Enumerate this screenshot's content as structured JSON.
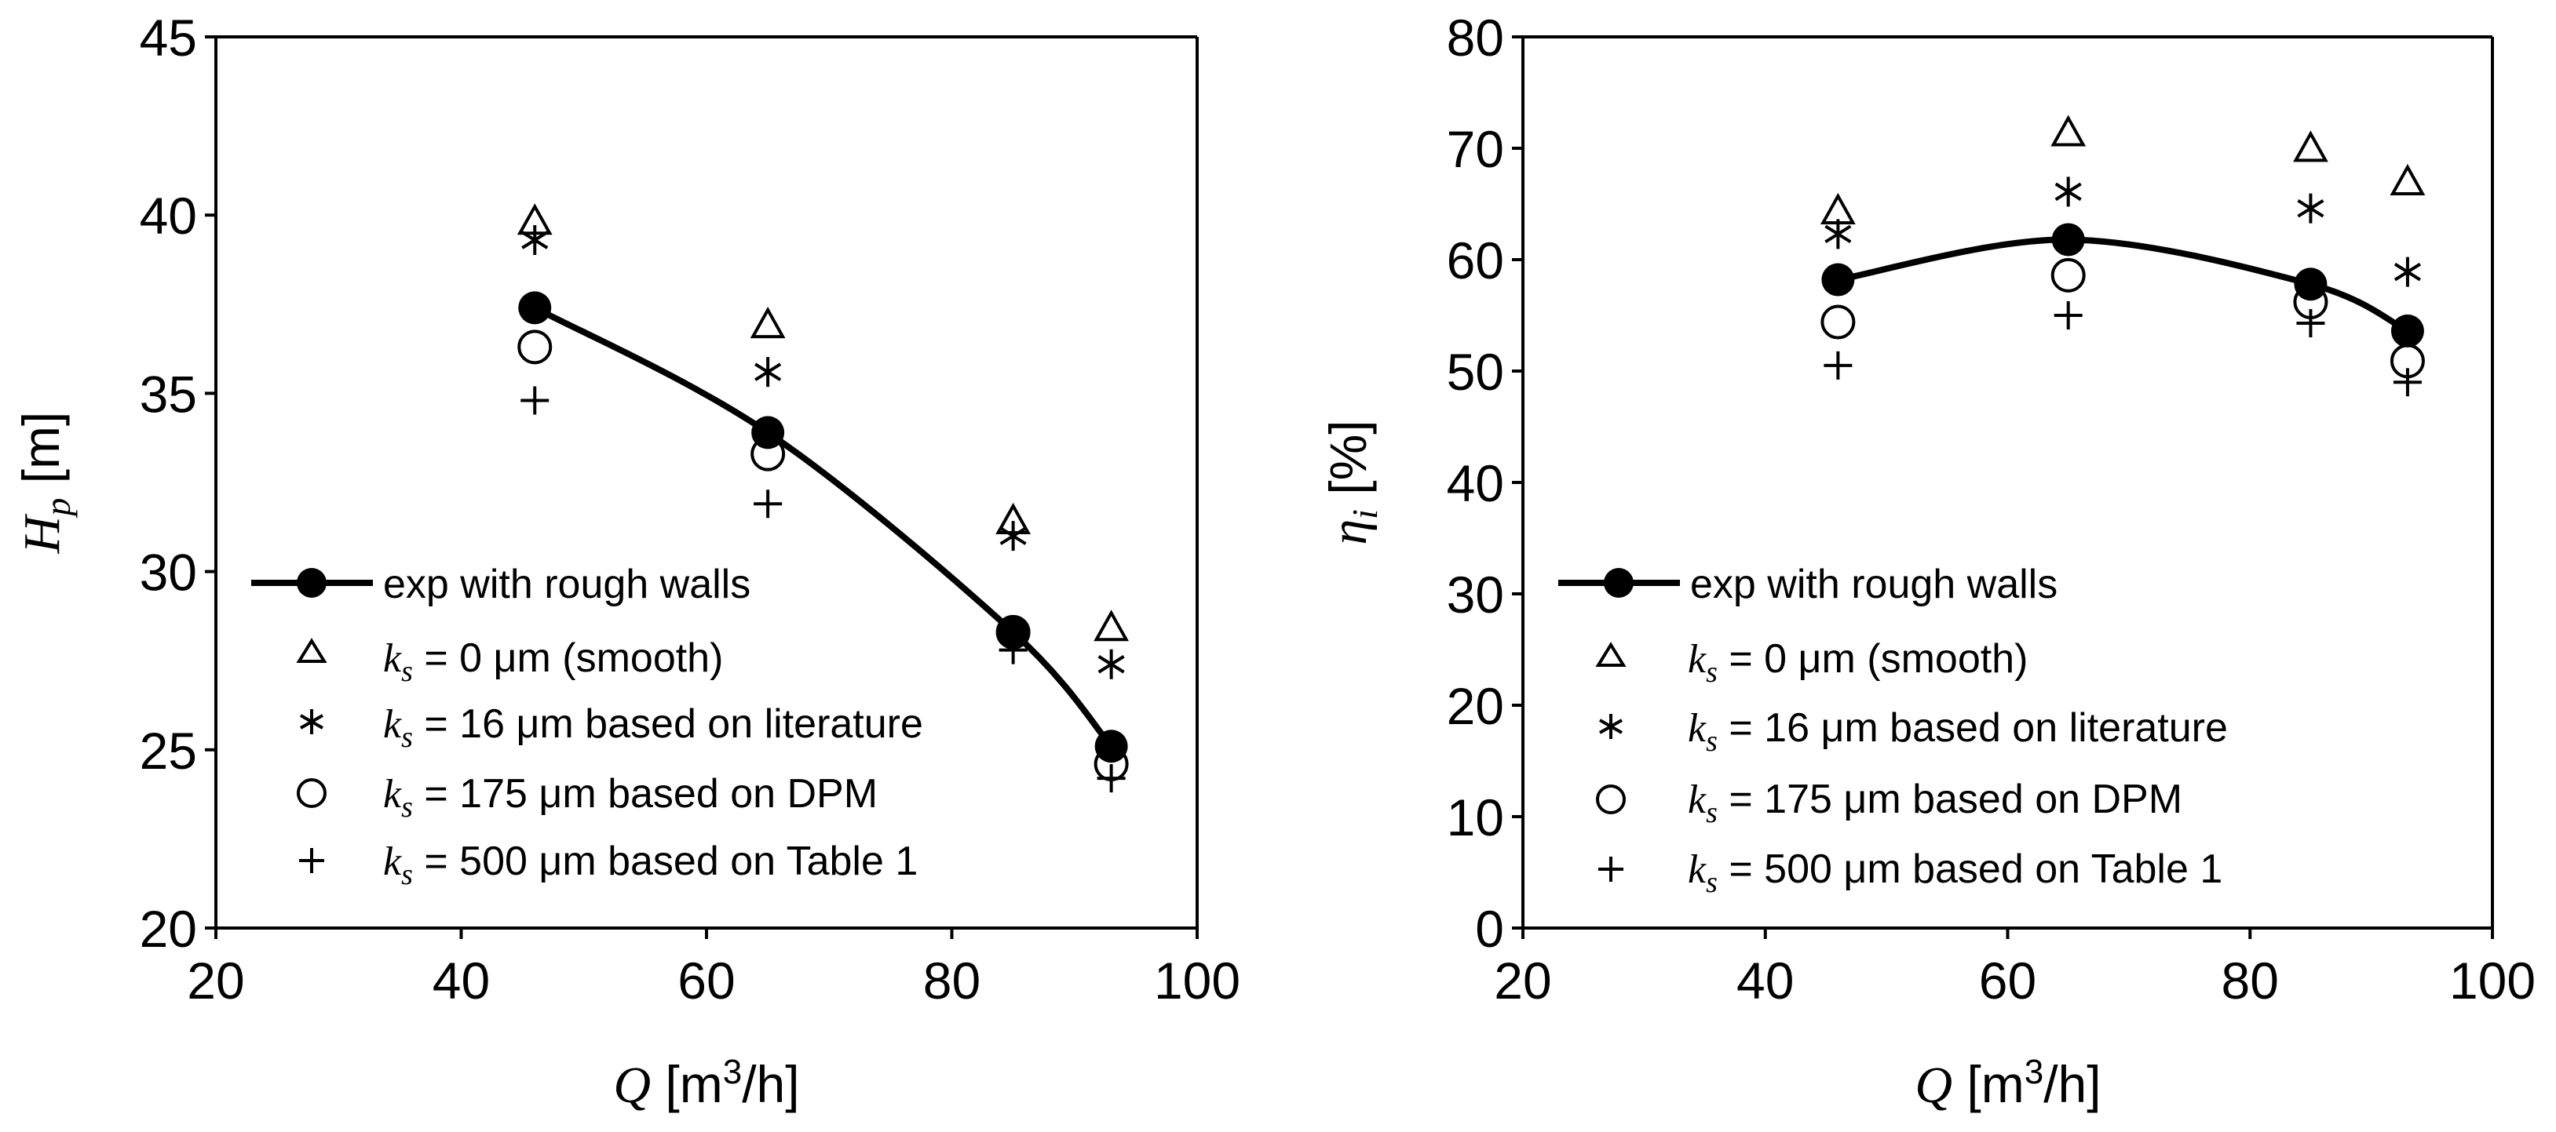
{
  "chart_data": [
    {
      "type": "scatter",
      "xlabel": "Q [m3/h]",
      "ylabel": "Hp [m]",
      "xlim": [
        20,
        100
      ],
      "ylim": [
        20,
        45
      ],
      "xticks": [
        20,
        40,
        60,
        80,
        100
      ],
      "yticks": [
        20,
        25,
        30,
        35,
        40,
        45
      ],
      "grid": false,
      "legend_position": "bottom-left",
      "series": [
        {
          "name": "exp with rough walls",
          "marker": "filled-circle",
          "line": "smooth",
          "x": [
            46,
            65,
            85,
            93
          ],
          "y": [
            37.4,
            33.9,
            28.3,
            25.1
          ]
        },
        {
          "name": "ks = 0 µm (smooth)",
          "marker": "triangle",
          "x": [
            46,
            65,
            85,
            93
          ],
          "y": [
            39.8,
            36.9,
            31.4,
            28.4
          ]
        },
        {
          "name": "ks = 16 µm based on literature",
          "marker": "asterisk",
          "x": [
            46,
            65,
            85,
            93
          ],
          "y": [
            39.3,
            35.6,
            31.0,
            27.4
          ]
        },
        {
          "name": "ks = 175 µm based on DPM",
          "marker": "open-circle",
          "x": [
            46,
            65,
            85,
            93
          ],
          "y": [
            36.3,
            33.3,
            28.3,
            24.6
          ]
        },
        {
          "name": "ks = 500 µm based on Table 1",
          "marker": "plus",
          "x": [
            46,
            65,
            85,
            93
          ],
          "y": [
            34.8,
            31.9,
            27.8,
            24.2
          ]
        }
      ]
    },
    {
      "type": "scatter",
      "xlabel": "Q [m3/h]",
      "ylabel": "ηi [%]",
      "xlim": [
        20,
        100
      ],
      "ylim": [
        0,
        80
      ],
      "xticks": [
        20,
        40,
        60,
        80,
        100
      ],
      "yticks": [
        0,
        10,
        20,
        30,
        40,
        50,
        60,
        70,
        80
      ],
      "grid": false,
      "legend_position": "bottom-left",
      "series": [
        {
          "name": "exp with rough walls",
          "marker": "filled-circle",
          "line": "smooth",
          "x": [
            46,
            65,
            85,
            93
          ],
          "y": [
            58.2,
            61.8,
            57.8,
            53.6
          ]
        },
        {
          "name": "ks = 0 µm (smooth)",
          "marker": "triangle",
          "x": [
            46,
            65,
            85,
            93
          ],
          "y": [
            64.3,
            71.3,
            69.9,
            66.9
          ]
        },
        {
          "name": "ks = 16 µm based on literature",
          "marker": "asterisk",
          "x": [
            46,
            65,
            85,
            93
          ],
          "y": [
            62.3,
            66.1,
            64.6,
            58.9
          ]
        },
        {
          "name": "ks = 175 µm based on DPM",
          "marker": "open-circle",
          "x": [
            46,
            65,
            85,
            93
          ],
          "y": [
            54.4,
            58.6,
            56.2,
            50.9
          ]
        },
        {
          "name": "ks = 500 µm based on Table 1",
          "marker": "plus",
          "x": [
            46,
            65,
            85,
            93
          ],
          "y": [
            50.5,
            55.0,
            54.3,
            49.0
          ]
        }
      ]
    }
  ],
  "axis_text": {
    "q_symbol": "Q",
    "q_unit_open": " [m",
    "q_unit_sup": "3",
    "q_unit_close": "/h]",
    "hp_symbol": "H",
    "hp_sub": "p",
    "hp_unit": " [m]",
    "eta_symbol": "η",
    "eta_sub": "i",
    "eta_unit": " [%]"
  },
  "legend_text": {
    "exp": "exp with rough walls",
    "ks_symbol": "k",
    "ks_sub": "s",
    "eq": " = ",
    "smooth_value": "0 μm",
    "smooth_note": " (smooth)",
    "lit_value": "16 μm",
    "lit_note": " based on literature",
    "dpm_value": "175 μm",
    "dpm_note": " based on DPM",
    "table_value": "500 μm",
    "table_note": " based on Table 1"
  }
}
